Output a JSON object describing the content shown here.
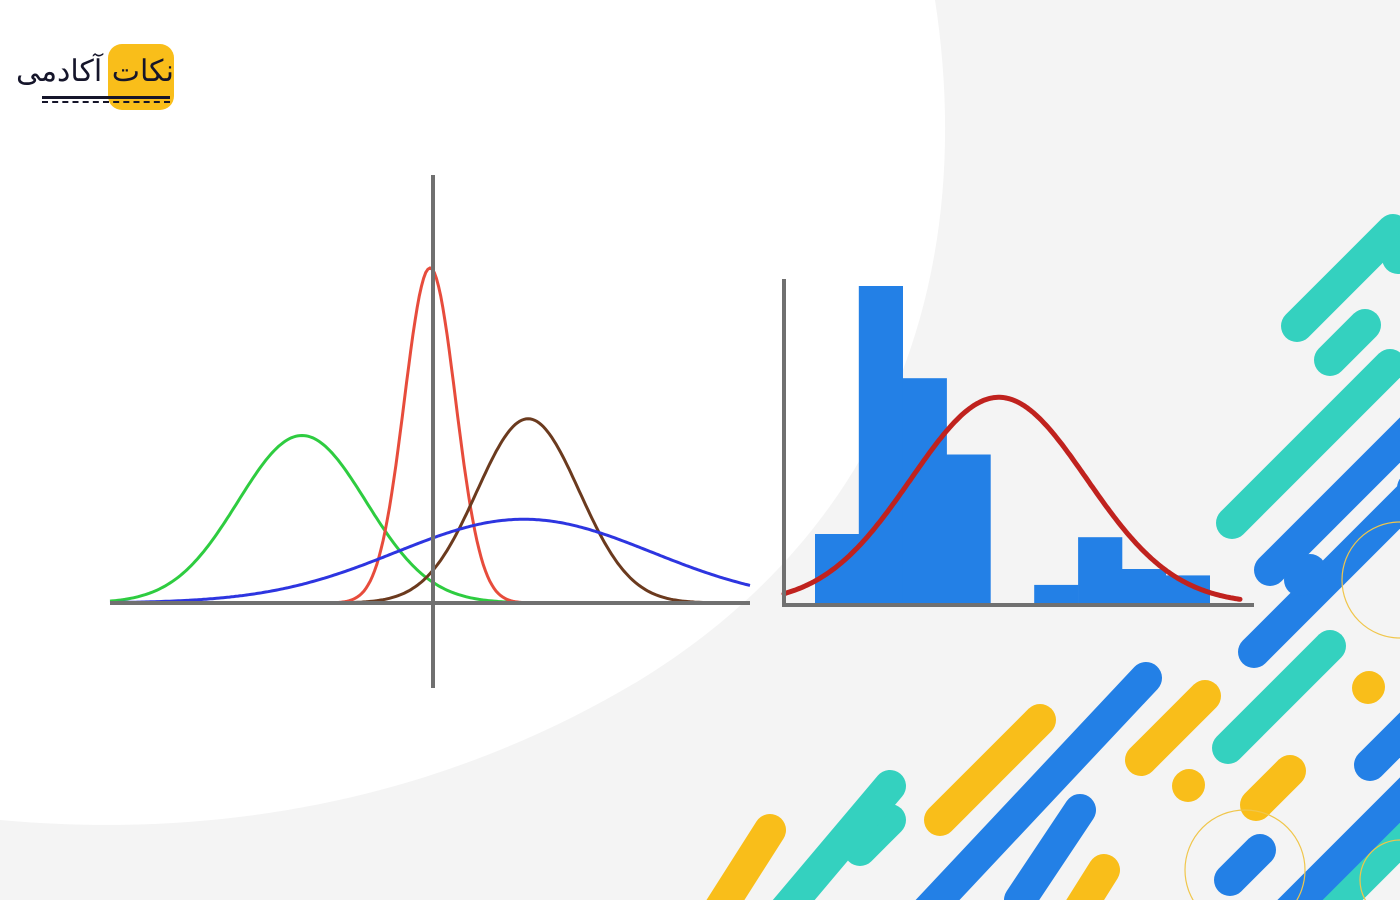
{
  "brand": {
    "logo_text": "نکات آکادمی",
    "mark_color": "#F9BE1A",
    "text_color": "#15152a"
  },
  "colors": {
    "background": "#f4f4f4",
    "white_panel": "#ffffff",
    "axis": "#707070",
    "stripe_teal": "#34D1BF",
    "stripe_blue": "#2380E6",
    "stripe_yellow": "#F9BE1A",
    "outline_yellow": "#F0C64B"
  },
  "left_figure": {
    "curves": [
      {
        "name": "green-curve",
        "color": "#2ECC40",
        "mean": -3.0,
        "sd": 1.5,
        "peak": 0.5
      },
      {
        "name": "red-curve",
        "color": "#E74C3C",
        "mean": 0.0,
        "sd": 0.6,
        "peak": 1.0
      },
      {
        "name": "brown-curve",
        "color": "#6B3A1E",
        "mean": 2.3,
        "sd": 1.2,
        "peak": 0.55
      },
      {
        "name": "blue-curve",
        "color": "#2D35E0",
        "mean": 2.2,
        "sd": 3.0,
        "peak": 0.25
      }
    ],
    "x_range": [
      -7.5,
      7.5
    ],
    "y_range": [
      0,
      1
    ]
  },
  "right_figure": {
    "bar_color": "#2380E6",
    "curve_color": "#C0221E",
    "histogram": [
      {
        "bin": 1,
        "value": 0.22
      },
      {
        "bin": 2,
        "value": 1.0
      },
      {
        "bin": 3,
        "value": 0.71
      },
      {
        "bin": 4,
        "value": 0.47
      },
      {
        "bin": 5,
        "value": 0
      },
      {
        "bin": 6,
        "value": 0.06
      },
      {
        "bin": 7,
        "value": 0.21
      },
      {
        "bin": 8,
        "value": 0.11
      },
      {
        "bin": 9,
        "value": 0.09
      }
    ],
    "normal_curve": {
      "mean": 4.7,
      "sd": 2.0,
      "peak": 0.65
    },
    "x_range": [
      -0.2,
      10.2
    ],
    "y_range": [
      0,
      1
    ]
  }
}
